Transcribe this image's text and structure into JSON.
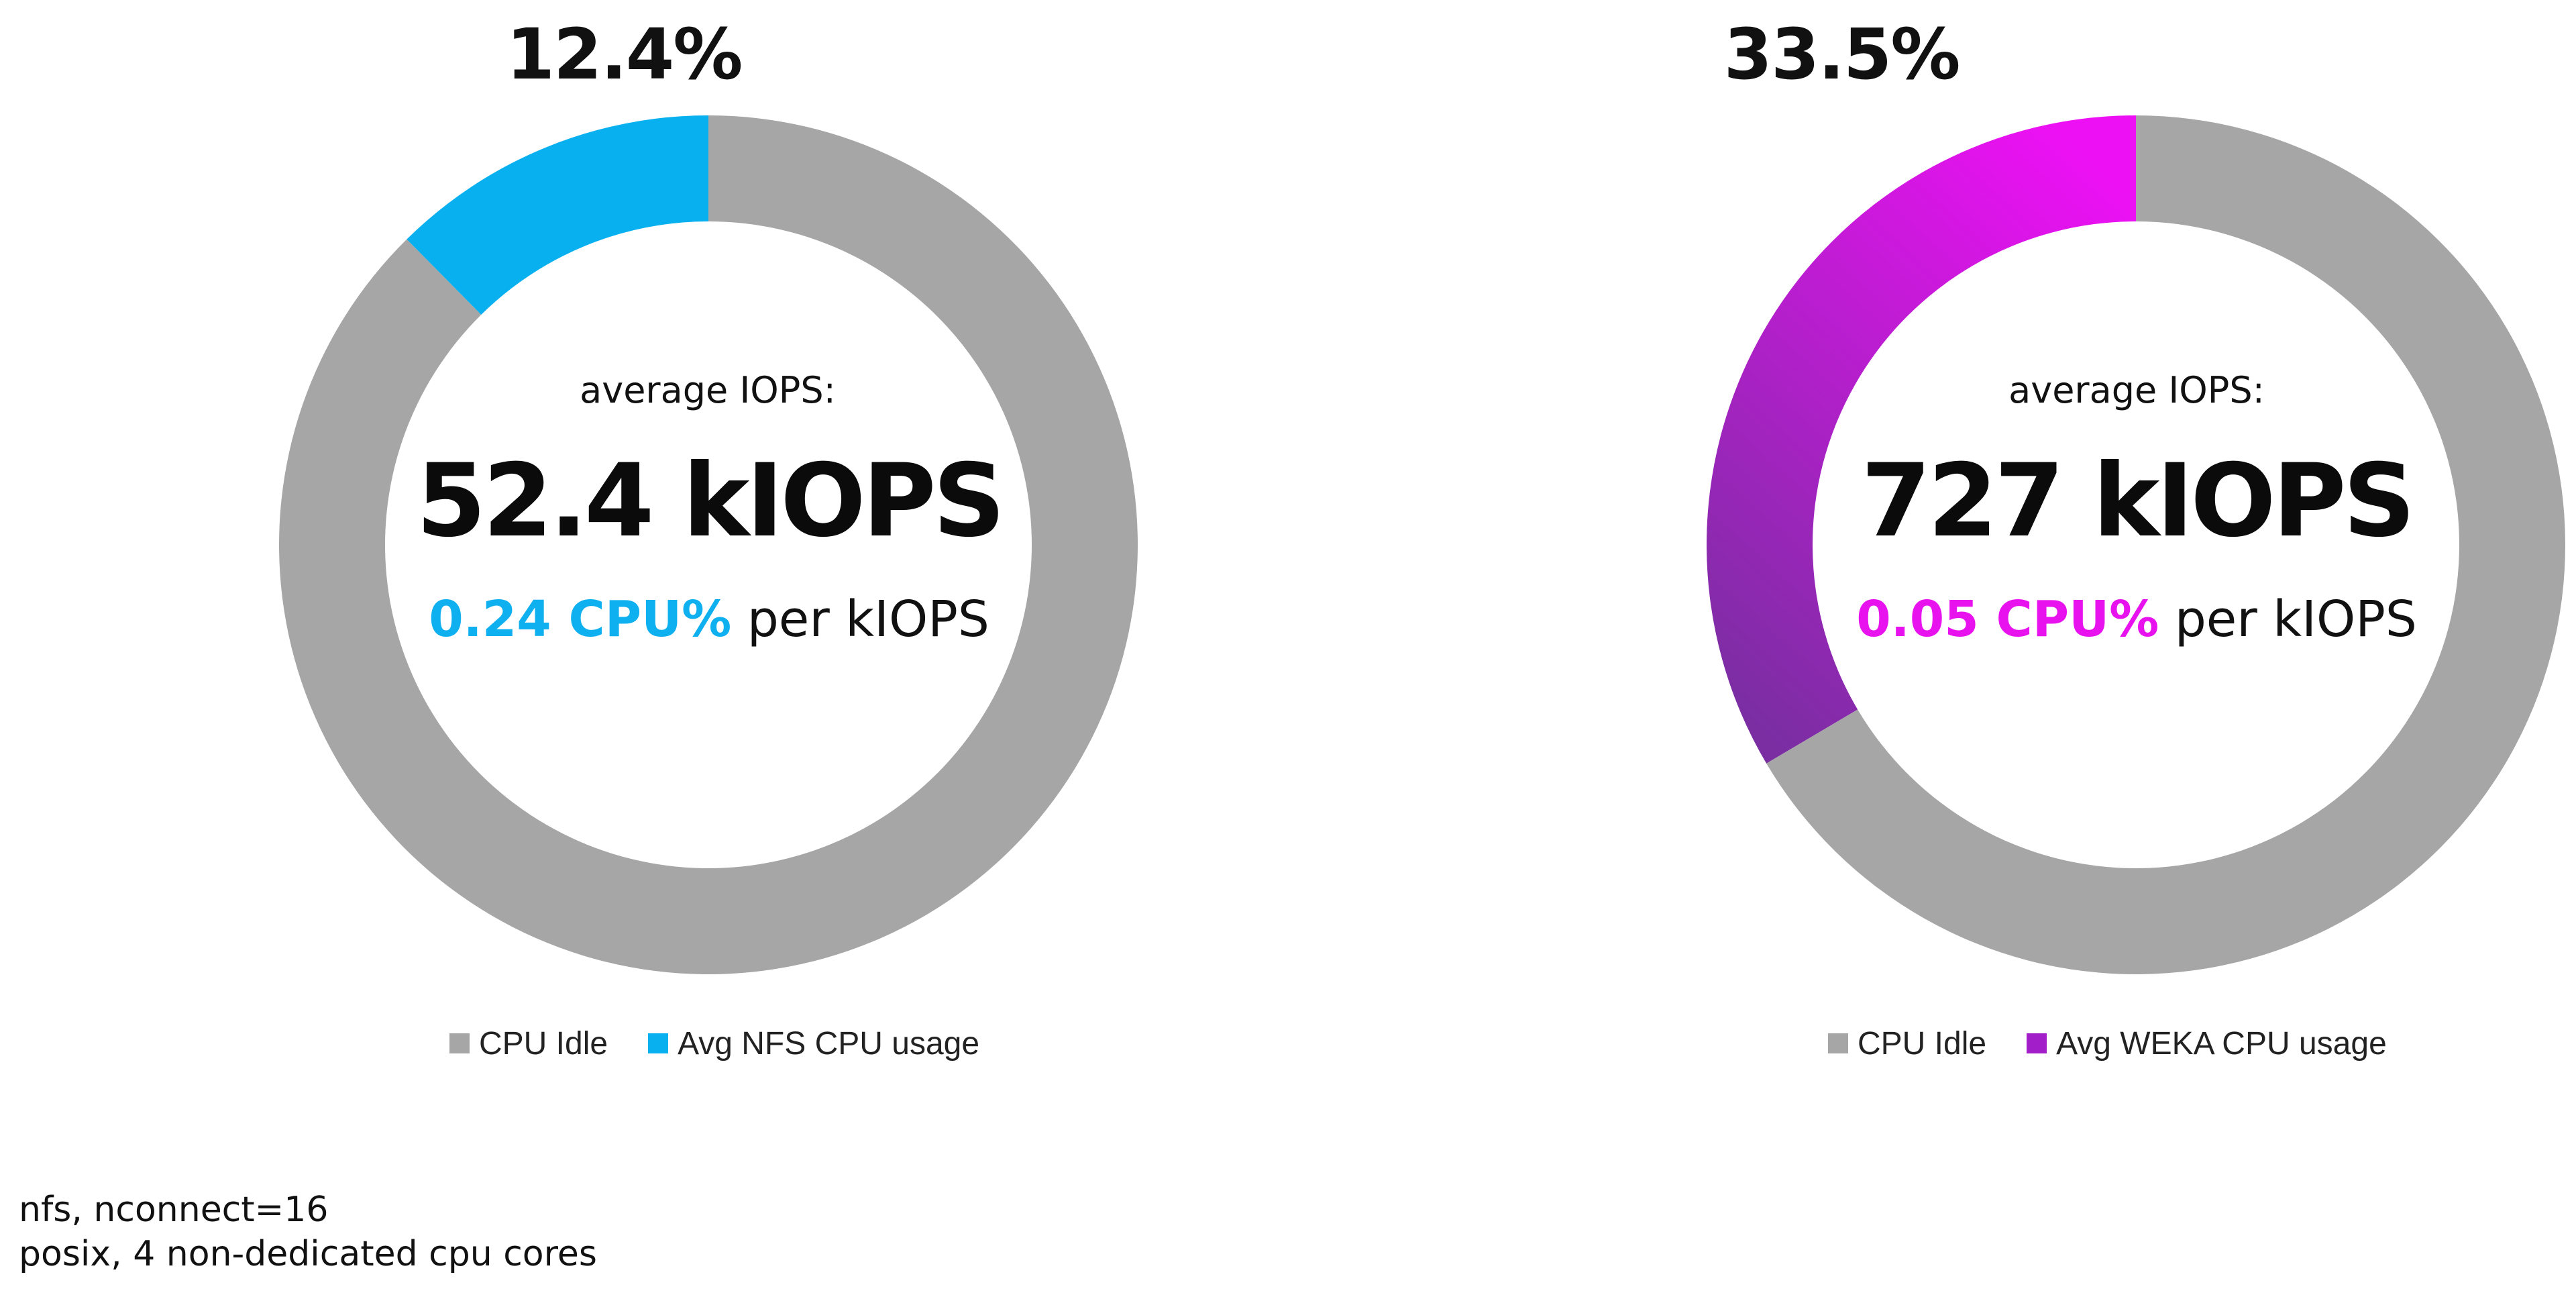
{
  "chart_data": [
    {
      "type": "pie",
      "style": "donut",
      "percent_label": "12.4%",
      "series": [
        {
          "name": "CPU Idle",
          "value": 87.6,
          "color": "#a6a6a6"
        },
        {
          "name": "Avg NFS CPU usage",
          "value": 12.4,
          "color": "#08b0ef"
        }
      ],
      "center": {
        "label": "average IOPS:",
        "value": "52.4 kIOPS",
        "cpu_value": "0.24 CPU%",
        "cpu_value_color": "#0fb0ef",
        "cpu_suffix": " per kIOPS"
      },
      "legend": {
        "position": "bottom",
        "items": [
          {
            "label": "CPU Idle",
            "color": "#a6a6a6"
          },
          {
            "label": "Avg NFS CPU usage",
            "color": "#08b0ef"
          }
        ]
      }
    },
    {
      "type": "pie",
      "style": "donut",
      "percent_label": "33.5%",
      "series": [
        {
          "name": "CPU Idle",
          "value": 66.5,
          "color": "#a6a6a6"
        },
        {
          "name": "Avg WEKA CPU usage",
          "value": 33.5,
          "color": "#b61fd6",
          "gradient": [
            "#ee10f5",
            "#7a2ea2"
          ]
        }
      ],
      "center": {
        "label": "average IOPS:",
        "value": "727 kIOPS",
        "cpu_value": "0.05 CPU%",
        "cpu_value_color": "#e812ee",
        "cpu_suffix": " per kIOPS"
      },
      "legend": {
        "position": "bottom",
        "items": [
          {
            "label": "CPU Idle",
            "color": "#a6a6a6"
          },
          {
            "label": "Avg WEKA CPU usage",
            "color": "#a21ec8"
          }
        ]
      }
    }
  ],
  "notes": [
    "nfs, nconnect=16",
    "posix, 4 non-dedicated cpu cores"
  ]
}
